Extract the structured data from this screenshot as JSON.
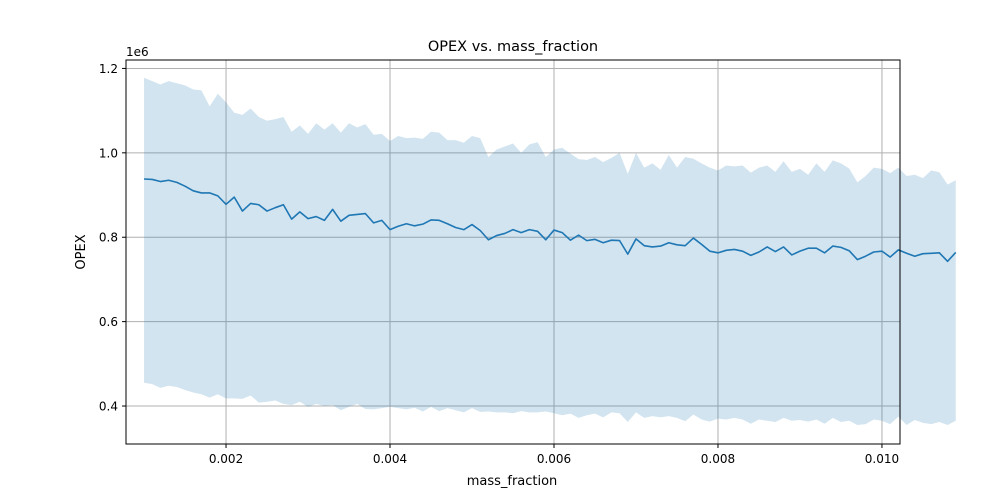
{
  "chart_data": {
    "type": "line",
    "title": "OPEX vs. mass_fraction",
    "xlabel": "mass_fraction",
    "ylabel": "OPEX",
    "y_offset_text": "1e6",
    "xlim": [
      0.00078,
      0.01022
    ],
    "ylim": [
      0.31,
      1.22
    ],
    "x_ticks": [
      0.002,
      0.004,
      0.006,
      0.008,
      0.01
    ],
    "x_tick_labels": [
      "0.002",
      "0.004",
      "0.006",
      "0.008",
      "0.010"
    ],
    "y_ticks": [
      0.4,
      0.6,
      0.8,
      1.0,
      1.2
    ],
    "y_tick_labels": [
      "0.4",
      "0.6",
      "0.8",
      "1.0",
      "1.2"
    ],
    "grid": true,
    "line_color": "#1f77b4",
    "band_color": "#1f77b4",
    "band_opacity": 0.2,
    "x_start": 0.001,
    "x_step": 0.0001,
    "series": [
      {
        "values": [
          0.938,
          0.937,
          0.932,
          0.935,
          0.93,
          0.921,
          0.91,
          0.905,
          0.905,
          0.898,
          0.878,
          0.895,
          0.862,
          0.88,
          0.877,
          0.862,
          0.87,
          0.877,
          0.843,
          0.86,
          0.844,
          0.849,
          0.84,
          0.866,
          0.838,
          0.852,
          0.854,
          0.856,
          0.834,
          0.84,
          0.818,
          0.826,
          0.832,
          0.827,
          0.831,
          0.841,
          0.84,
          0.832,
          0.823,
          0.818,
          0.83,
          0.816,
          0.794,
          0.804,
          0.809,
          0.818,
          0.811,
          0.818,
          0.814,
          0.794,
          0.817,
          0.811,
          0.793,
          0.805,
          0.792,
          0.795,
          0.787,
          0.793,
          0.792,
          0.76,
          0.796,
          0.78,
          0.777,
          0.779,
          0.787,
          0.782,
          0.78,
          0.798,
          0.783,
          0.767,
          0.763,
          0.769,
          0.771,
          0.767,
          0.757,
          0.765,
          0.777,
          0.766,
          0.777,
          0.758,
          0.767,
          0.774,
          0.774,
          0.763,
          0.779,
          0.776,
          0.768,
          0.747,
          0.755,
          0.765,
          0.767,
          0.753,
          0.77,
          0.762,
          0.755,
          0.761,
          0.762,
          0.763,
          0.743,
          0.764
        ]
      }
    ],
    "band": {
      "upper": [
        1.178,
        1.17,
        1.162,
        1.17,
        1.165,
        1.16,
        1.15,
        1.148,
        1.11,
        1.14,
        1.12,
        1.095,
        1.09,
        1.105,
        1.085,
        1.076,
        1.08,
        1.085,
        1.05,
        1.065,
        1.045,
        1.07,
        1.055,
        1.07,
        1.048,
        1.07,
        1.06,
        1.068,
        1.043,
        1.045,
        1.028,
        1.04,
        1.035,
        1.036,
        1.033,
        1.05,
        1.048,
        1.03,
        1.03,
        1.024,
        1.04,
        1.035,
        0.99,
        1.008,
        1.015,
        1.022,
        1.0,
        1.02,
        1.025,
        0.99,
        1.008,
        1.012,
        0.998,
        0.985,
        0.983,
        0.99,
        0.978,
        0.988,
        1.0,
        0.95,
        1.0,
        0.965,
        0.975,
        0.96,
        0.995,
        0.965,
        0.99,
        0.986,
        0.975,
        0.965,
        0.958,
        0.97,
        0.968,
        0.97,
        0.953,
        0.965,
        0.97,
        0.955,
        0.98,
        0.955,
        0.962,
        0.948,
        0.975,
        0.955,
        0.982,
        0.975,
        0.963,
        0.93,
        0.945,
        0.965,
        0.962,
        0.952,
        0.965,
        0.945,
        0.948,
        0.94,
        0.958,
        0.954,
        0.925,
        0.935
      ],
      "lower": [
        0.455,
        0.452,
        0.443,
        0.448,
        0.445,
        0.438,
        0.432,
        0.428,
        0.42,
        0.428,
        0.418,
        0.418,
        0.417,
        0.425,
        0.408,
        0.41,
        0.413,
        0.405,
        0.402,
        0.41,
        0.398,
        0.405,
        0.4,
        0.402,
        0.39,
        0.398,
        0.405,
        0.393,
        0.392,
        0.395,
        0.398,
        0.395,
        0.392,
        0.396,
        0.387,
        0.398,
        0.388,
        0.395,
        0.39,
        0.385,
        0.395,
        0.386,
        0.387,
        0.385,
        0.385,
        0.383,
        0.388,
        0.385,
        0.385,
        0.387,
        0.383,
        0.378,
        0.382,
        0.372,
        0.378,
        0.382,
        0.373,
        0.385,
        0.383,
        0.362,
        0.385,
        0.372,
        0.376,
        0.373,
        0.376,
        0.372,
        0.364,
        0.38,
        0.368,
        0.363,
        0.37,
        0.368,
        0.372,
        0.368,
        0.358,
        0.368,
        0.365,
        0.362,
        0.372,
        0.365,
        0.367,
        0.363,
        0.368,
        0.358,
        0.372,
        0.362,
        0.365,
        0.355,
        0.357,
        0.368,
        0.365,
        0.357,
        0.375,
        0.355,
        0.367,
        0.36,
        0.357,
        0.362,
        0.355,
        0.365
      ]
    }
  }
}
